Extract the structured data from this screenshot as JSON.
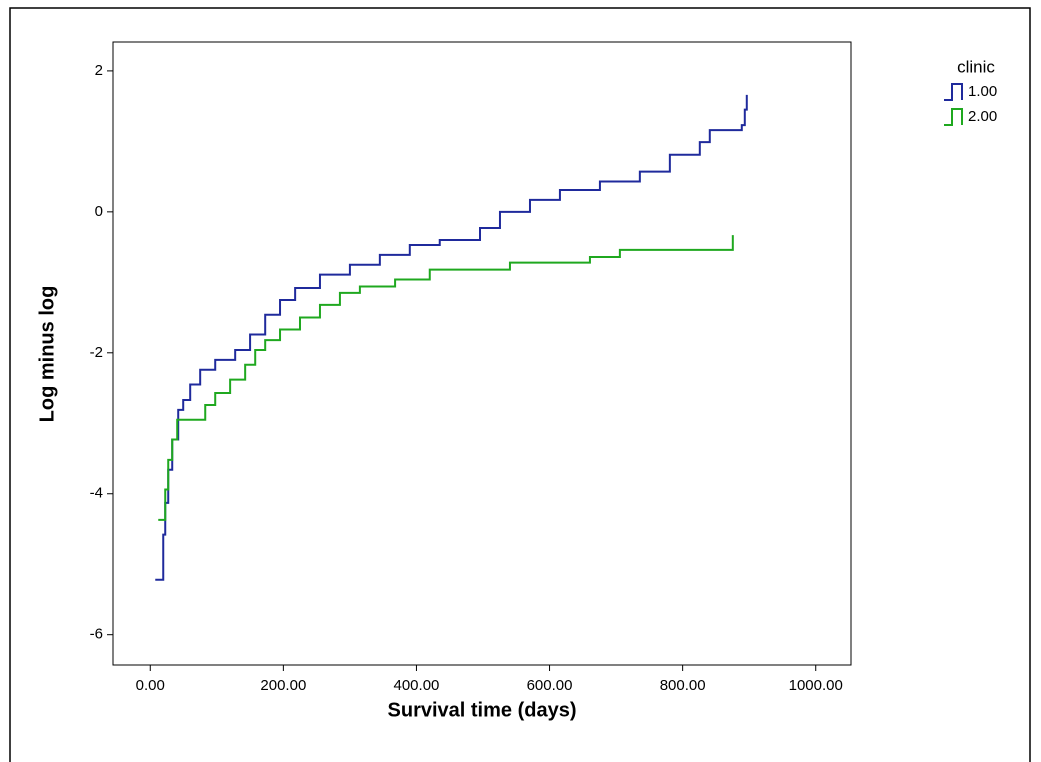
{
  "chart_data": {
    "type": "step",
    "x_label": "Survival time (days)",
    "y_label": "Log minus log",
    "legend_title": "clinic",
    "legend_position": "top-right",
    "xlim": [
      -56,
      1053
    ],
    "ylim": [
      -6.43,
      2.41
    ],
    "xticks": [
      {
        "value": 0,
        "label": "0.00"
      },
      {
        "value": 200,
        "label": "200.00"
      },
      {
        "value": 400,
        "label": "400.00"
      },
      {
        "value": 600,
        "label": "600.00"
      },
      {
        "value": 800,
        "label": "800.00"
      },
      {
        "value": 1000,
        "label": "1000.00"
      }
    ],
    "yticks": [
      2,
      0,
      -2,
      -4,
      -6
    ],
    "series": [
      {
        "name": "1.00",
        "color": "#1f2a9c",
        "x": [
          7.5,
          19.5,
          22.5,
          27,
          33,
          42,
          49.5,
          60,
          75,
          97.6,
          127.6,
          150,
          172.7,
          195,
          217.7,
          255,
          300,
          345,
          390,
          435,
          495.5,
          525.5,
          570.6,
          615.6,
          675.7,
          735.7,
          780.8,
          825.8,
          840.8,
          888.9,
          893.4,
          896.4
        ],
        "values": [
          -5.22,
          -4.58,
          -4.13,
          -3.66,
          -3.23,
          -2.81,
          -2.67,
          -2.45,
          -2.24,
          -2.1,
          -1.96,
          -1.74,
          -1.46,
          -1.25,
          -1.08,
          -0.89,
          -0.75,
          -0.61,
          -0.47,
          -0.4,
          -0.23,
          0,
          0.17,
          0.31,
          0.43,
          0.57,
          0.81,
          0.99,
          1.16,
          1.23,
          1.45,
          1.66
        ]
      },
      {
        "name": "2.00",
        "color": "#1fa81f",
        "x": [
          12,
          22.5,
          27,
          33,
          40.5,
          82.6,
          97.6,
          120,
          142.6,
          157.7,
          172.7,
          195,
          225,
          255,
          285,
          315,
          367.9,
          420,
          540.5,
          660.7,
          705.7,
          875.4
        ],
        "values": [
          -4.37,
          -3.94,
          -3.52,
          -3.23,
          -2.95,
          -2.74,
          -2.57,
          -2.38,
          -2.17,
          -1.96,
          -1.82,
          -1.67,
          -1.5,
          -1.32,
          -1.15,
          -1.06,
          -0.96,
          -0.82,
          -0.72,
          -0.64,
          -0.54,
          -0.33
        ]
      }
    ]
  }
}
